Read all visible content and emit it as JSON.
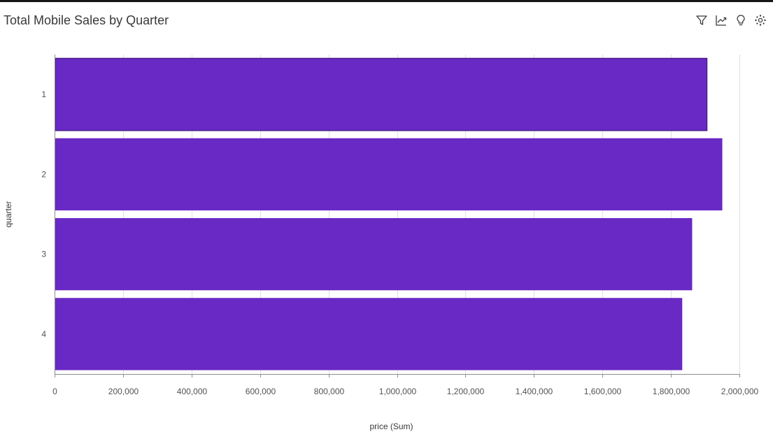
{
  "title": "Total Mobile Sales by Quarter",
  "toolbar": {
    "icons": [
      "filter-icon",
      "trend-icon",
      "lightbulb-icon",
      "settings-icon"
    ]
  },
  "colors": {
    "bar": "#6929c4",
    "bar_stroke": "#4a1d8f",
    "grid": "#e0e0e0",
    "axis": "#8d8d8d"
  },
  "chart_data": {
    "type": "bar",
    "orientation": "horizontal",
    "categories": [
      "1",
      "2",
      "3",
      "4"
    ],
    "values": [
      1905000,
      1950000,
      1862000,
      1833000
    ],
    "xlabel": "price (Sum)",
    "ylabel": "quarter",
    "xlim": [
      0,
      2000000
    ],
    "x_ticks": [
      0,
      200000,
      400000,
      600000,
      800000,
      1000000,
      1200000,
      1400000,
      1600000,
      1800000,
      2000000
    ],
    "x_tick_labels": [
      "0",
      "200,000",
      "400,000",
      "600,000",
      "800,000",
      "1,000,000",
      "1,200,000",
      "1,400,000",
      "1,600,000",
      "1,800,000",
      "2,000,000"
    ],
    "grid": true,
    "legend": "none"
  }
}
